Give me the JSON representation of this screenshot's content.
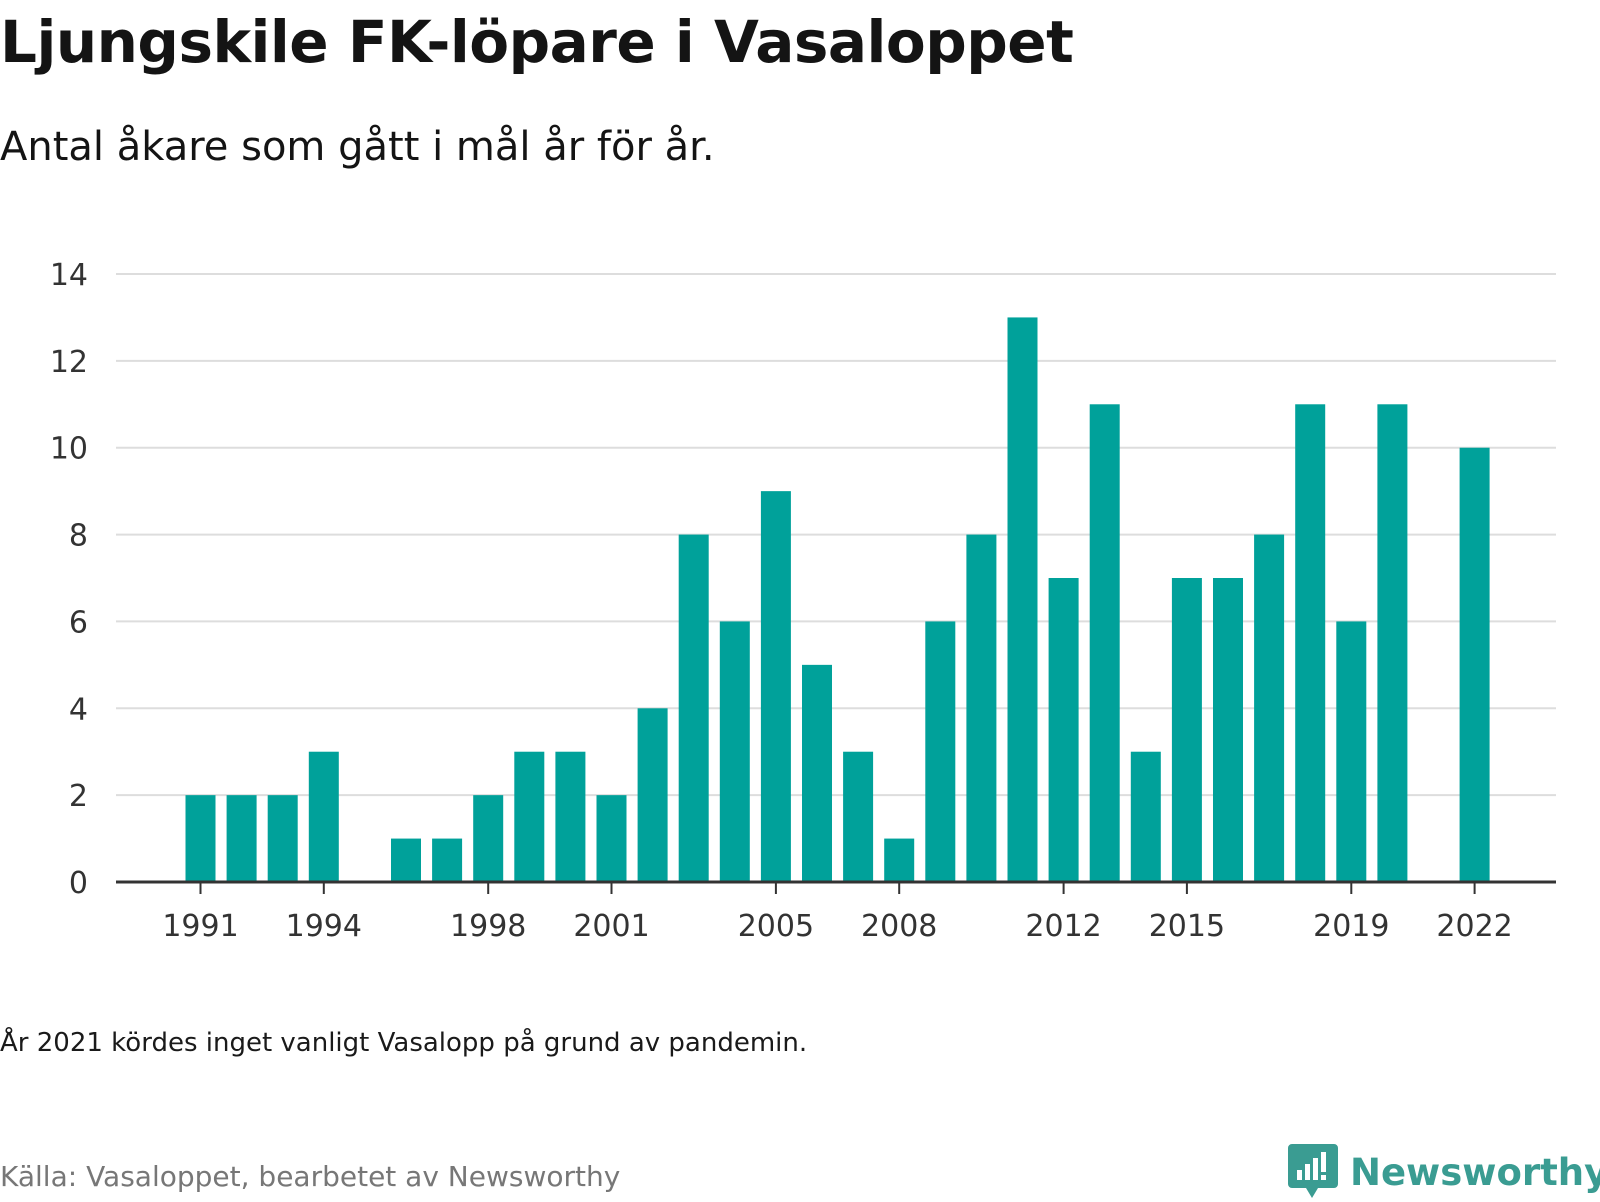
{
  "header": {
    "title": "Ljungskile FK-löpare i Vasaloppet",
    "subtitle": "Antal åkare som gått i mål år för år."
  },
  "footer": {
    "note": "År 2021 kördes inget vanligt Vasalopp på grund av pandemin.",
    "source": "Källa: Vasaloppet, bearbetet av Newsworthy",
    "brand": "Newsworthy",
    "brand_icon": "bar-chart-speech-bubble-icon"
  },
  "colors": {
    "bar": "#00a19a",
    "grid": "#dddddd",
    "axis": "#333333",
    "brand": "#3a9c92"
  },
  "chart_data": {
    "type": "bar",
    "title": "Ljungskile FK-löpare i Vasaloppet",
    "subtitle": "Antal åkare som gått i mål år för år.",
    "xlabel": "",
    "ylabel": "",
    "categories": [
      1991,
      1992,
      1993,
      1994,
      1995,
      1996,
      1997,
      1998,
      1999,
      2000,
      2001,
      2002,
      2003,
      2004,
      2005,
      2006,
      2007,
      2008,
      2009,
      2010,
      2011,
      2012,
      2013,
      2014,
      2015,
      2016,
      2017,
      2018,
      2019,
      2020,
      2021,
      2022
    ],
    "values": [
      2,
      2,
      2,
      3,
      null,
      1,
      1,
      2,
      3,
      3,
      2,
      4,
      8,
      6,
      9,
      5,
      3,
      1,
      6,
      8,
      13,
      7,
      11,
      3,
      7,
      7,
      8,
      11,
      6,
      11,
      null,
      10
    ],
    "x_tick_labels": [
      "1991",
      "1994",
      "1998",
      "2001",
      "2005",
      "2008",
      "2012",
      "2015",
      "2019",
      "2022"
    ],
    "y_ticks": [
      0,
      2,
      4,
      6,
      8,
      10,
      12,
      14
    ],
    "ylim": [
      0,
      14
    ],
    "grid": true,
    "legend": "none"
  }
}
